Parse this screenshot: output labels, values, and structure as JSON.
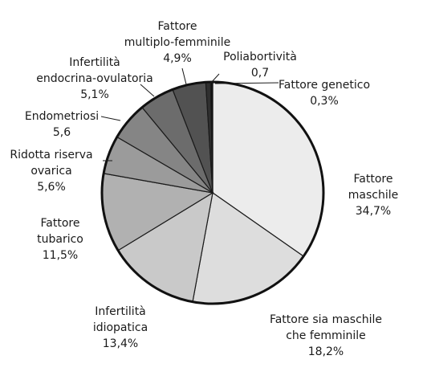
{
  "chart_data": {
    "type": "pie",
    "start": "12 o'clock",
    "direction": "clockwise",
    "slices": [
      {
        "name": "Fattore maschile",
        "value": 34.7,
        "label_lines": [
          "Fattore",
          "maschile",
          "34,7%"
        ],
        "color": "#ececec"
      },
      {
        "name": "Fattore sia maschile che femminile",
        "value": 18.2,
        "label_lines": [
          "Fattore sia maschile",
          "che femminile",
          "18,2%"
        ],
        "color": "#dddddd"
      },
      {
        "name": "Infertilità idiopatica",
        "value": 13.4,
        "label_lines": [
          "Infertilità",
          "idiopatica",
          "13,4%"
        ],
        "color": "#c9c9c9"
      },
      {
        "name": "Fattore tubarico",
        "value": 11.5,
        "label_lines": [
          "Fattore",
          "tubarico",
          "11,5%"
        ],
        "color": "#b1b1b1"
      },
      {
        "name": "Ridotta riserva ovarica",
        "value": 5.6,
        "label_lines": [
          "Ridotta riserva",
          "ovarica",
          "5,6%"
        ],
        "color": "#9b9b9b"
      },
      {
        "name": "Endometriosi",
        "value": 5.6,
        "label_lines": [
          "Endometriosi",
          "5,6"
        ],
        "color": "#858585"
      },
      {
        "name": "Infertilità endocrina-ovulatoria",
        "value": 5.1,
        "label_lines": [
          "Infertilità",
          "endocrina-ovulatoria",
          "5,1%"
        ],
        "color": "#6c6c6c"
      },
      {
        "name": "Fattore multiplo-femminile",
        "value": 4.9,
        "label_lines": [
          "Fattore",
          "multiplo-femminile",
          "4,9%"
        ],
        "color": "#525252"
      },
      {
        "name": "Poliabortività",
        "value": 0.7,
        "label_lines": [
          "Poliabortività",
          "0,7"
        ],
        "color": "#303030"
      },
      {
        "name": "Fattore genetico",
        "value": 0.3,
        "label_lines": [
          "Fattore genetico",
          "0,3%"
        ],
        "color": "#111111"
      }
    ]
  }
}
